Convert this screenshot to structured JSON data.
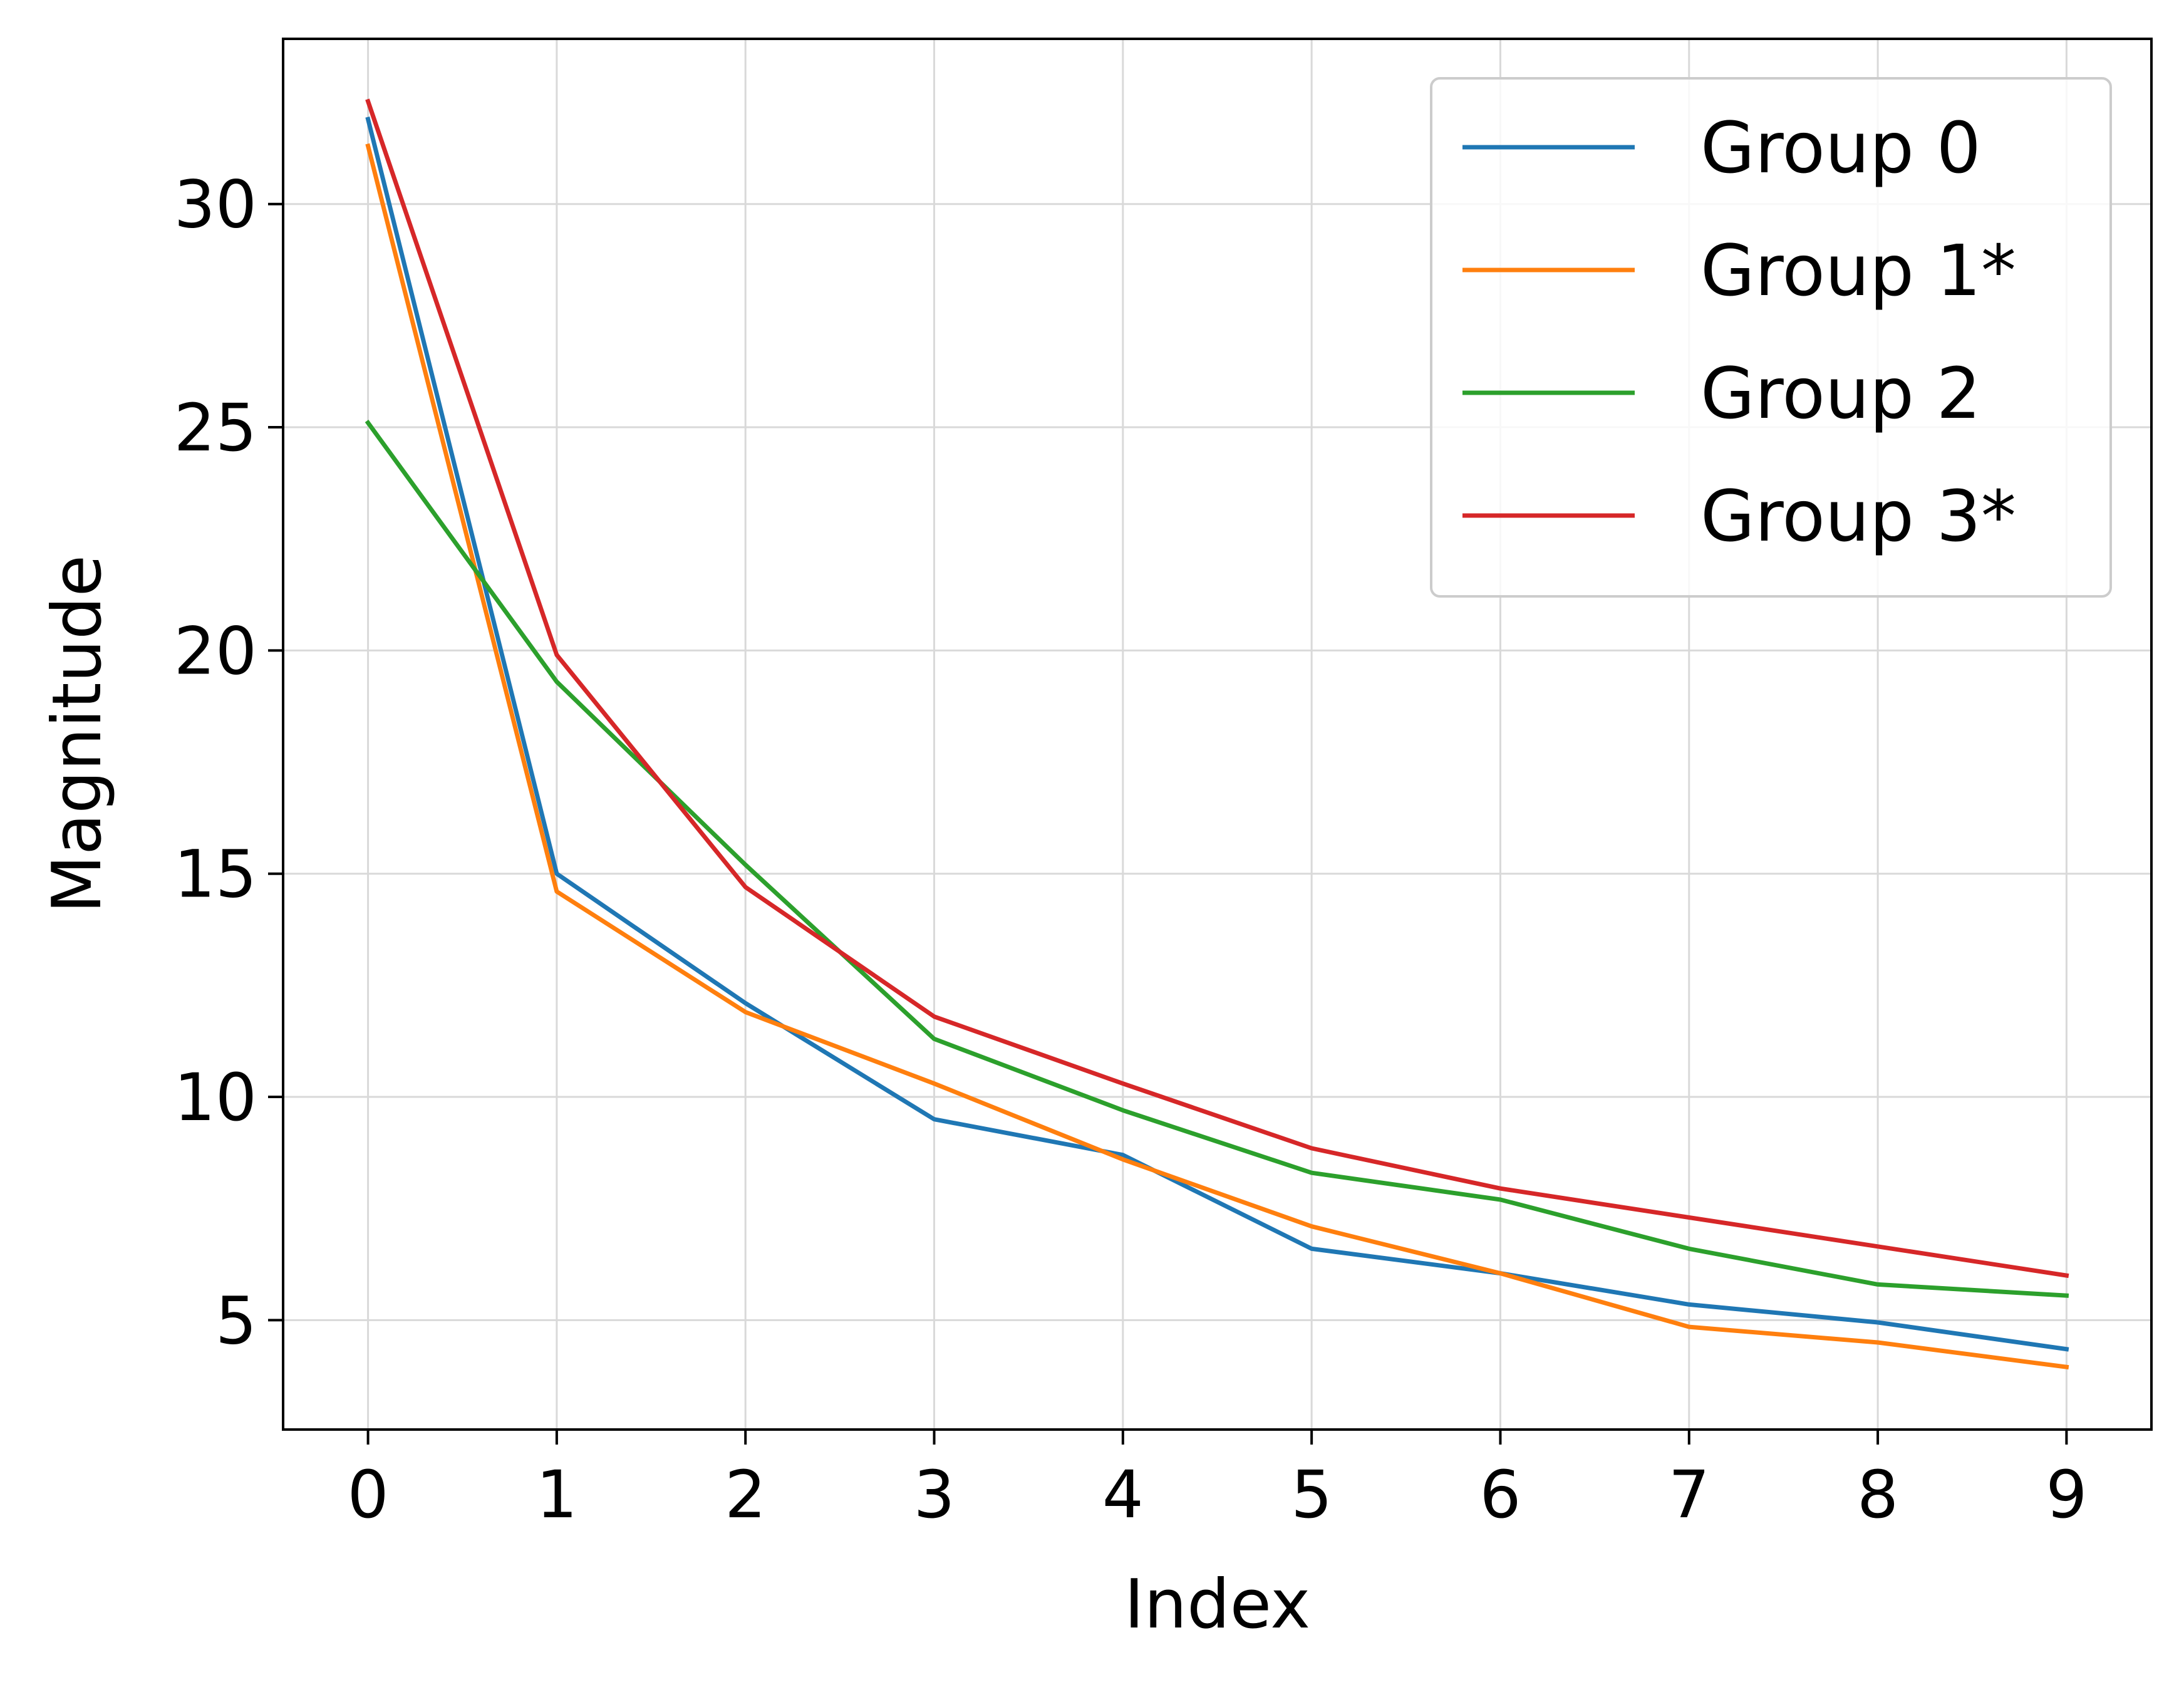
{
  "chart_data": {
    "type": "line",
    "title": "",
    "xlabel": "Index",
    "ylabel": "Magnitude",
    "x": [
      0,
      1,
      2,
      3,
      4,
      5,
      6,
      7,
      8,
      9
    ],
    "xlim": [
      -0.45,
      9.45
    ],
    "ylim": [
      2.55,
      33.7
    ],
    "xticks": [
      "0",
      "1",
      "2",
      "3",
      "4",
      "5",
      "6",
      "7",
      "8",
      "9"
    ],
    "yticks": [
      5,
      10,
      15,
      20,
      25,
      30
    ],
    "ytick_labels": [
      "5",
      "10",
      "15",
      "20",
      "25",
      "30"
    ],
    "grid": true,
    "legend_position": "top-right",
    "series": [
      {
        "name": "Group 0",
        "color": "#1f77b4",
        "values": [
          31.9,
          15.0,
          12.1,
          9.5,
          8.7,
          6.6,
          6.05,
          5.35,
          4.95,
          4.35
        ]
      },
      {
        "name": "Group 1*",
        "color": "#ff7f0e",
        "values": [
          31.3,
          14.6,
          11.9,
          10.3,
          8.6,
          7.1,
          6.05,
          4.85,
          4.5,
          3.95
        ]
      },
      {
        "name": "Group 2",
        "color": "#2ca02c",
        "values": [
          25.1,
          19.3,
          15.2,
          11.3,
          9.7,
          8.3,
          7.7,
          6.6,
          5.8,
          5.55
        ]
      },
      {
        "name": "Group 3*",
        "color": "#d62728",
        "values": [
          32.3,
          19.9,
          14.7,
          11.8,
          10.3,
          8.85,
          7.95,
          7.3,
          6.65,
          6.0
        ]
      }
    ]
  }
}
